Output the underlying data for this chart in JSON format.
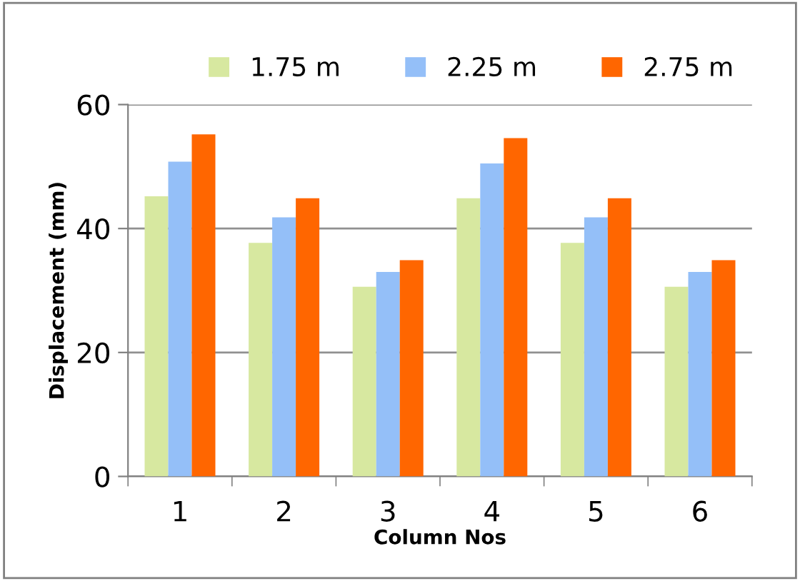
{
  "chart_data": {
    "type": "bar",
    "xlabel": "Column Nos",
    "ylabel": "Displacement (mm)",
    "categories": [
      "1",
      "2",
      "3",
      "4",
      "5",
      "6"
    ],
    "series": [
      {
        "name": "1.75 m",
        "color": "#d7e8a0",
        "values": [
          45.2,
          37.7,
          30.6,
          44.9,
          37.7,
          30.6
        ]
      },
      {
        "name": "2.25 m",
        "color": "#94bff8",
        "values": [
          50.8,
          41.8,
          33.0,
          50.5,
          41.8,
          33.0
        ]
      },
      {
        "name": "2.75 m",
        "color": "#ff6600",
        "values": [
          55.2,
          44.9,
          34.9,
          54.6,
          44.9,
          34.9
        ]
      }
    ],
    "ylim": [
      0,
      60
    ],
    "yticks": [
      0,
      20,
      40,
      60
    ],
    "grid": "y",
    "legend": "top"
  }
}
